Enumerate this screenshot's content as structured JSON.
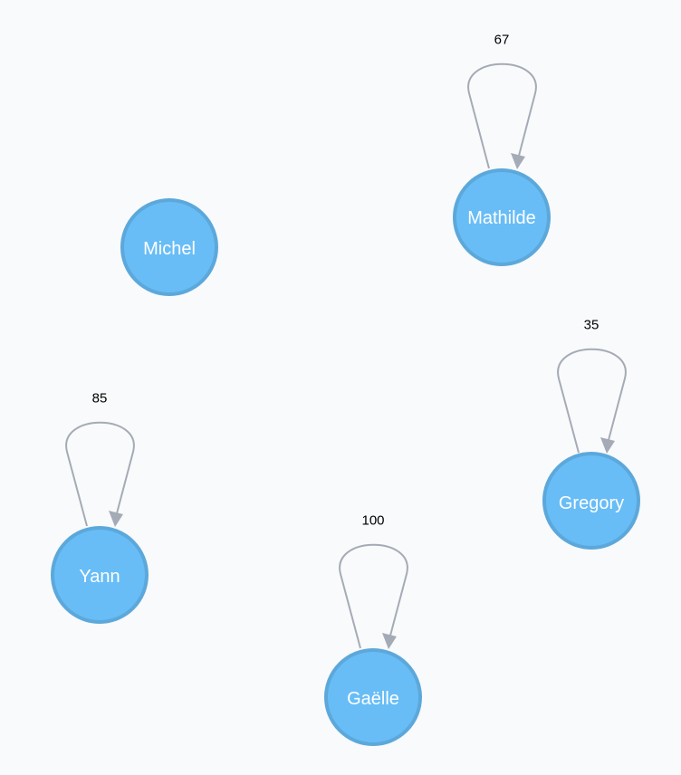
{
  "colors": {
    "background": "#f9fafb",
    "node_fill": "#68bdf6",
    "node_stroke": "#5ca8db",
    "edge": "#a5abb6",
    "node_text": "#ffffff",
    "edge_text": "#000000"
  },
  "graph": {
    "nodes": [
      {
        "id": "mathilde",
        "label": "Mathilde"
      },
      {
        "id": "michel",
        "label": "Michel"
      },
      {
        "id": "gregory",
        "label": "Gregory"
      },
      {
        "id": "yann",
        "label": "Yann"
      },
      {
        "id": "gaelle",
        "label": "Gaëlle"
      }
    ],
    "edges": [
      {
        "from": "mathilde",
        "to": "mathilde",
        "label": "67"
      },
      {
        "from": "gregory",
        "to": "gregory",
        "label": "35"
      },
      {
        "from": "yann",
        "to": "yann",
        "label": "85"
      },
      {
        "from": "gaelle",
        "to": "gaelle",
        "label": "100"
      }
    ]
  }
}
